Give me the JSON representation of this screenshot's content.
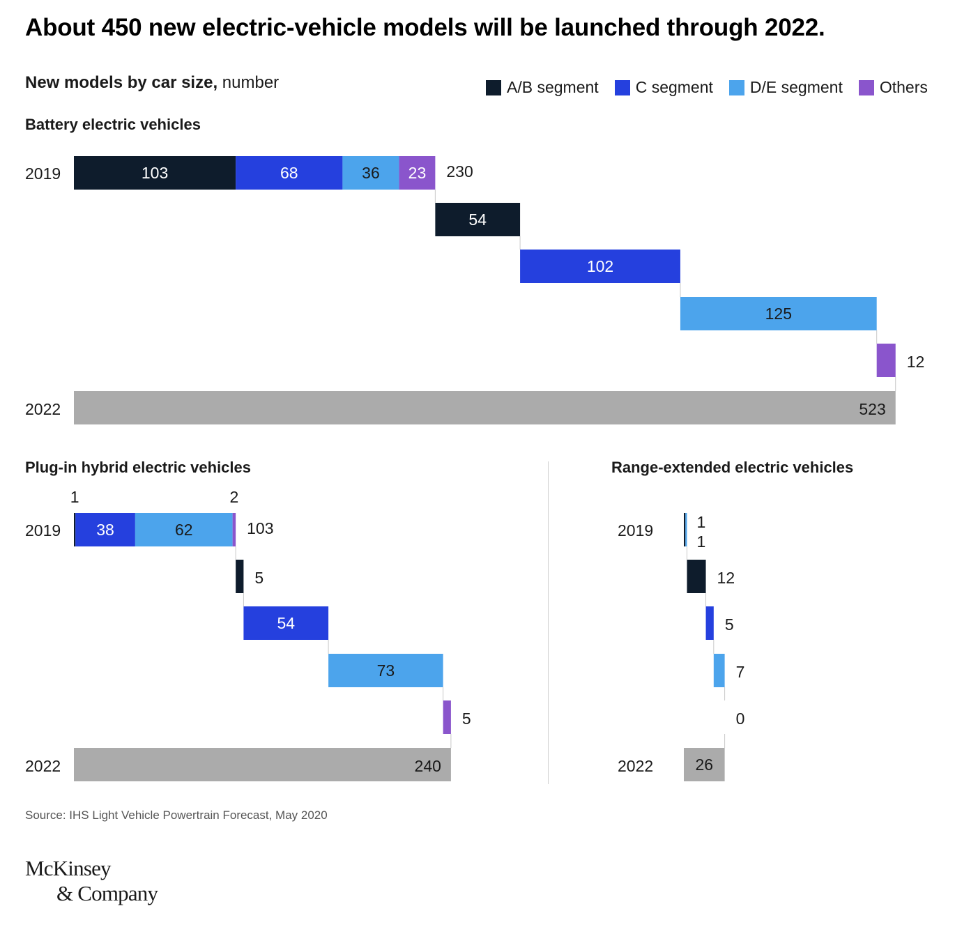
{
  "title": "About 450 new electric-vehicle models will be launched through 2022.",
  "subtitle_bold": "New models by car size,",
  "subtitle_unit": " number",
  "legend": [
    {
      "label": "A/B segment",
      "color": "#0e1c2c"
    },
    {
      "label": "C segment",
      "color": "#2540de"
    },
    {
      "label": "D/E segment",
      "color": "#4ca4ec"
    },
    {
      "label": "Others",
      "color": "#8a55cc"
    }
  ],
  "total_color": "#ababab",
  "source": "Source: IHS Light Vehicle Powertrain Forecast, May 2020",
  "logo": {
    "line1": "McKinsey",
    "line2": "& Company"
  },
  "chart_data": [
    {
      "type": "bar",
      "subtype": "waterfall",
      "title": "Battery electric vehicles",
      "start_label": "2019",
      "end_label": "2022",
      "segments": [
        "A/B segment",
        "C segment",
        "D/E segment",
        "Others"
      ],
      "start_values": [
        103,
        68,
        36,
        23
      ],
      "start_total": 230,
      "increments": [
        54,
        102,
        125,
        12
      ],
      "end_total": 523
    },
    {
      "type": "bar",
      "subtype": "waterfall",
      "title": "Plug-in hybrid electric vehicles",
      "start_label": "2019",
      "end_label": "2022",
      "segments": [
        "A/B segment",
        "C segment",
        "D/E segment",
        "Others"
      ],
      "start_values": [
        1,
        38,
        62,
        2
      ],
      "start_total": 103,
      "increments": [
        5,
        54,
        73,
        5
      ],
      "end_total": 240
    },
    {
      "type": "bar",
      "subtype": "waterfall",
      "title": "Range-extended electric vehicles",
      "start_label": "2019",
      "end_label": "2022",
      "segments": [
        "A/B segment",
        "C segment",
        "D/E segment",
        "Others"
      ],
      "start_values": [
        1,
        0,
        1,
        0
      ],
      "start_total": 2,
      "increments": [
        12,
        5,
        7,
        0
      ],
      "end_total": 26
    }
  ]
}
